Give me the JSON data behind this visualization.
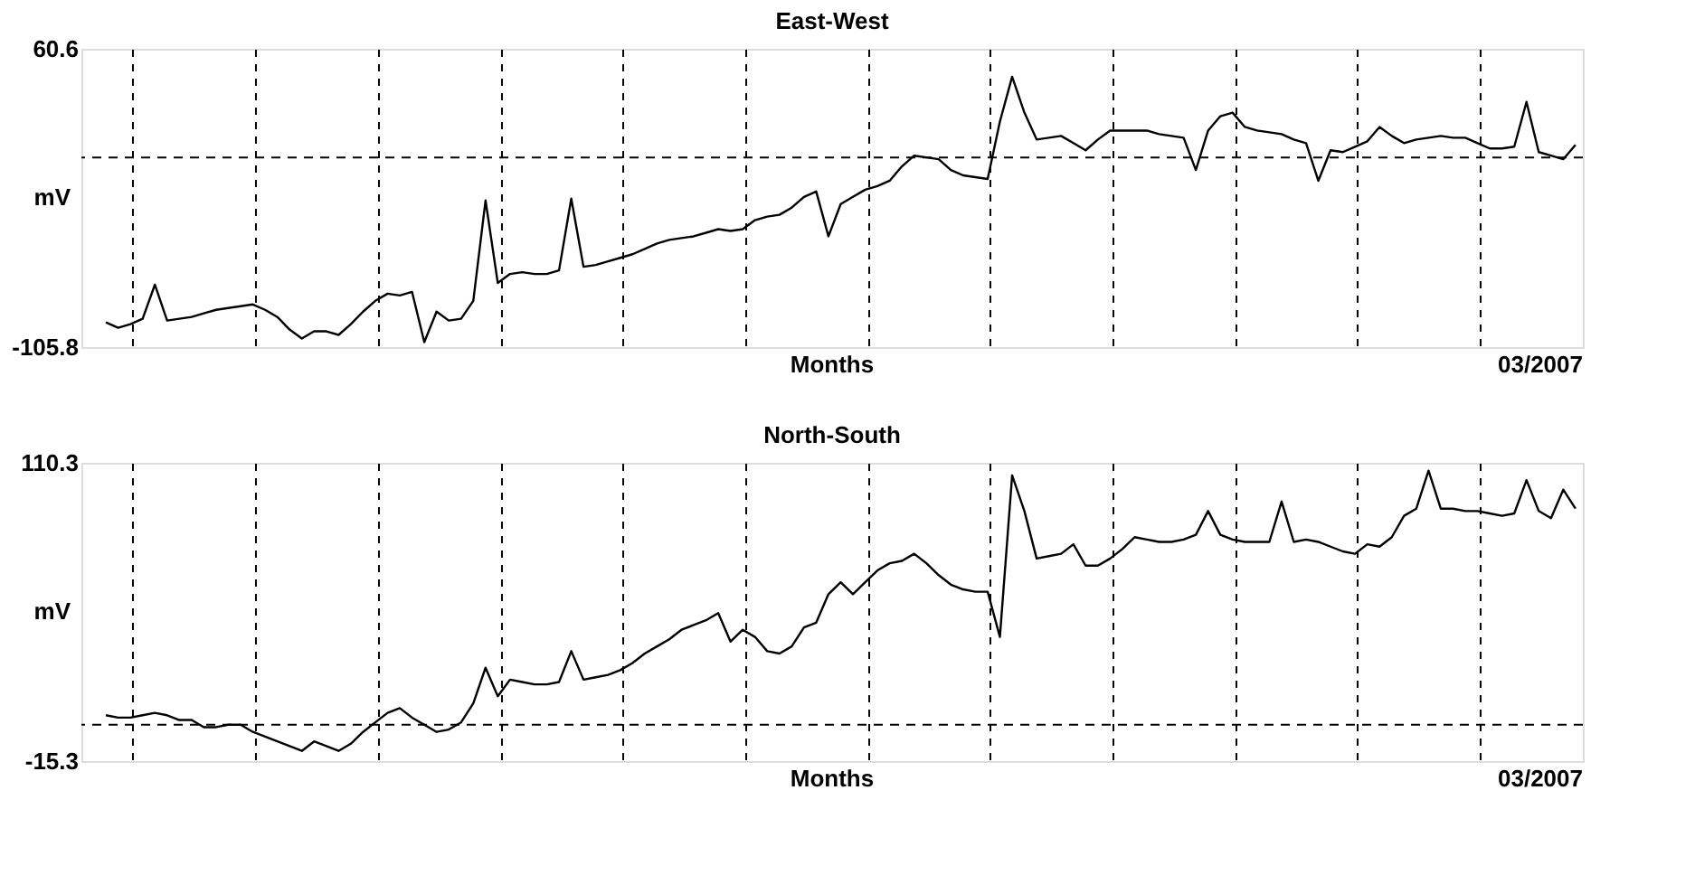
{
  "chart_data": [
    {
      "type": "line",
      "title": "East-West",
      "xlabel": "Months",
      "ylabel": "mV",
      "ylim": [
        -105.8,
        60.6
      ],
      "yticks": [
        -105.8,
        60.6
      ],
      "annotations": [
        "03/2007"
      ],
      "line_style": "solid",
      "marker": "none",
      "ref_lines": [
        {
          "axis": "y",
          "value": 0,
          "line_style": "dashed"
        }
      ],
      "categories": [
        null,
        null,
        null,
        null,
        null,
        null,
        null,
        null,
        null,
        null,
        null,
        null,
        null,
        null,
        null,
        null,
        null,
        null,
        null,
        null,
        null,
        null,
        null,
        null,
        null,
        null,
        null,
        null,
        null,
        null,
        null,
        null,
        null,
        null,
        null,
        null,
        null,
        null,
        null,
        null,
        null,
        null,
        null,
        null,
        null,
        null,
        null,
        null,
        null,
        null,
        null,
        null,
        null,
        null,
        null,
        null,
        null,
        null,
        null,
        null,
        null,
        null,
        null,
        null,
        null,
        null,
        null,
        null,
        null,
        null,
        null,
        null,
        null,
        null,
        null,
        null,
        null,
        null,
        null,
        null,
        null,
        null,
        null,
        null,
        null,
        null,
        null,
        null,
        null,
        null,
        null,
        null,
        null,
        null,
        null,
        null,
        null,
        null,
        null,
        null,
        null,
        null,
        null,
        null,
        null,
        null,
        null,
        null,
        null,
        null,
        null,
        null,
        null,
        null,
        null,
        null,
        null,
        null,
        null,
        null,
        null
      ],
      "series": [
        {
          "color": "#000000",
          "values": [
            -92,
            -95,
            -93,
            -90,
            -71,
            -91,
            -90,
            -89,
            -87,
            -85,
            -84,
            -83,
            -82,
            -85,
            -89,
            -96,
            -101,
            -97,
            -97,
            -99,
            -93,
            -86,
            -80,
            -76,
            -77,
            -75,
            -103,
            -86,
            -91,
            -90,
            -80,
            -24,
            -70,
            -65,
            -64,
            -65,
            -65,
            -63,
            -23,
            -61,
            -60,
            -58,
            -56,
            -54,
            -51,
            -48,
            -46,
            -45,
            -44,
            -42,
            -40,
            -41,
            -40,
            -35,
            -33,
            -32,
            -28,
            -22,
            -19,
            -44,
            -26,
            -22,
            -18,
            -16,
            -13,
            -5,
            1,
            0,
            -1,
            -7,
            -10,
            -11,
            -12,
            20,
            45,
            25,
            10,
            11,
            12,
            8,
            4,
            10,
            15,
            15,
            15,
            15,
            13,
            12,
            11,
            -7,
            15,
            23,
            25,
            17,
            15,
            14,
            13,
            10,
            8,
            -13,
            4,
            3,
            6,
            9,
            17,
            12,
            8,
            10,
            11,
            12,
            11,
            11,
            8,
            5,
            5,
            6,
            31,
            3,
            1,
            -1,
            7
          ]
        }
      ]
    },
    {
      "type": "line",
      "title": "North-South",
      "xlabel": "Months",
      "ylabel": "mV",
      "ylim": [
        -15.3,
        110.3
      ],
      "yticks": [
        -15.3,
        110.3
      ],
      "annotations": [
        "03/2007"
      ],
      "line_style": "solid",
      "marker": "none",
      "ref_lines": [
        {
          "axis": "y",
          "value": 0,
          "line_style": "dashed"
        }
      ],
      "categories": [
        null,
        null,
        null,
        null,
        null,
        null,
        null,
        null,
        null,
        null,
        null,
        null,
        null,
        null,
        null,
        null,
        null,
        null,
        null,
        null,
        null,
        null,
        null,
        null,
        null,
        null,
        null,
        null,
        null,
        null,
        null,
        null,
        null,
        null,
        null,
        null,
        null,
        null,
        null,
        null,
        null,
        null,
        null,
        null,
        null,
        null,
        null,
        null,
        null,
        null,
        null,
        null,
        null,
        null,
        null,
        null,
        null,
        null,
        null,
        null,
        null,
        null,
        null,
        null,
        null,
        null,
        null,
        null,
        null,
        null,
        null,
        null,
        null,
        null,
        null,
        null,
        null,
        null,
        null,
        null,
        null,
        null,
        null,
        null,
        null,
        null,
        null,
        null,
        null,
        null,
        null,
        null,
        null,
        null,
        null,
        null,
        null,
        null,
        null,
        null,
        null,
        null,
        null,
        null,
        null,
        null,
        null,
        null,
        null,
        null,
        null,
        null,
        null,
        null,
        null,
        null,
        null,
        null,
        null,
        null,
        null
      ],
      "series": [
        {
          "color": "#000000",
          "values": [
            4,
            3,
            3,
            4,
            5,
            4,
            2,
            2,
            -1,
            -1,
            0,
            0,
            -3,
            -5,
            -7,
            -9,
            -11,
            -7,
            -9,
            -11,
            -8,
            -3,
            1,
            5,
            7,
            3,
            0,
            -3,
            -2,
            1,
            9,
            24,
            12,
            19,
            18,
            17,
            17,
            18,
            31,
            19,
            20,
            21,
            23,
            26,
            30,
            33,
            36,
            40,
            42,
            44,
            47,
            35,
            40,
            37,
            31,
            30,
            33,
            41,
            43,
            55,
            60,
            55,
            60,
            65,
            68,
            69,
            72,
            68,
            63,
            59,
            57,
            56,
            56,
            37,
            105,
            90,
            70,
            71,
            72,
            76,
            67,
            67,
            70,
            74,
            79,
            78,
            77,
            77,
            78,
            80,
            90,
            80,
            78,
            77,
            77,
            77,
            94,
            77,
            78,
            77,
            75,
            73,
            72,
            76,
            75,
            79,
            88,
            91,
            107,
            91,
            91,
            90,
            90,
            89,
            88,
            89,
            103,
            90,
            87,
            99,
            91
          ]
        }
      ]
    }
  ]
}
